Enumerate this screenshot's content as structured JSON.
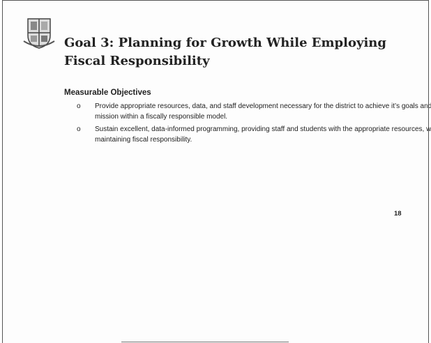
{
  "header": {
    "title": "Goal 3:  Planning for Growth While Employing Fiscal Responsibility"
  },
  "section": {
    "heading": "Measurable Objectives",
    "items": [
      "Provide appropriate resources, data, and staff development necessary for the district to achieve it’s goals and mission within a fiscally responsible model.",
      "Sustain excellent, data-informed programming, providing staff and students with the appropriate resources, while maintaining fiscal responsibility."
    ]
  },
  "page_number": "18"
}
